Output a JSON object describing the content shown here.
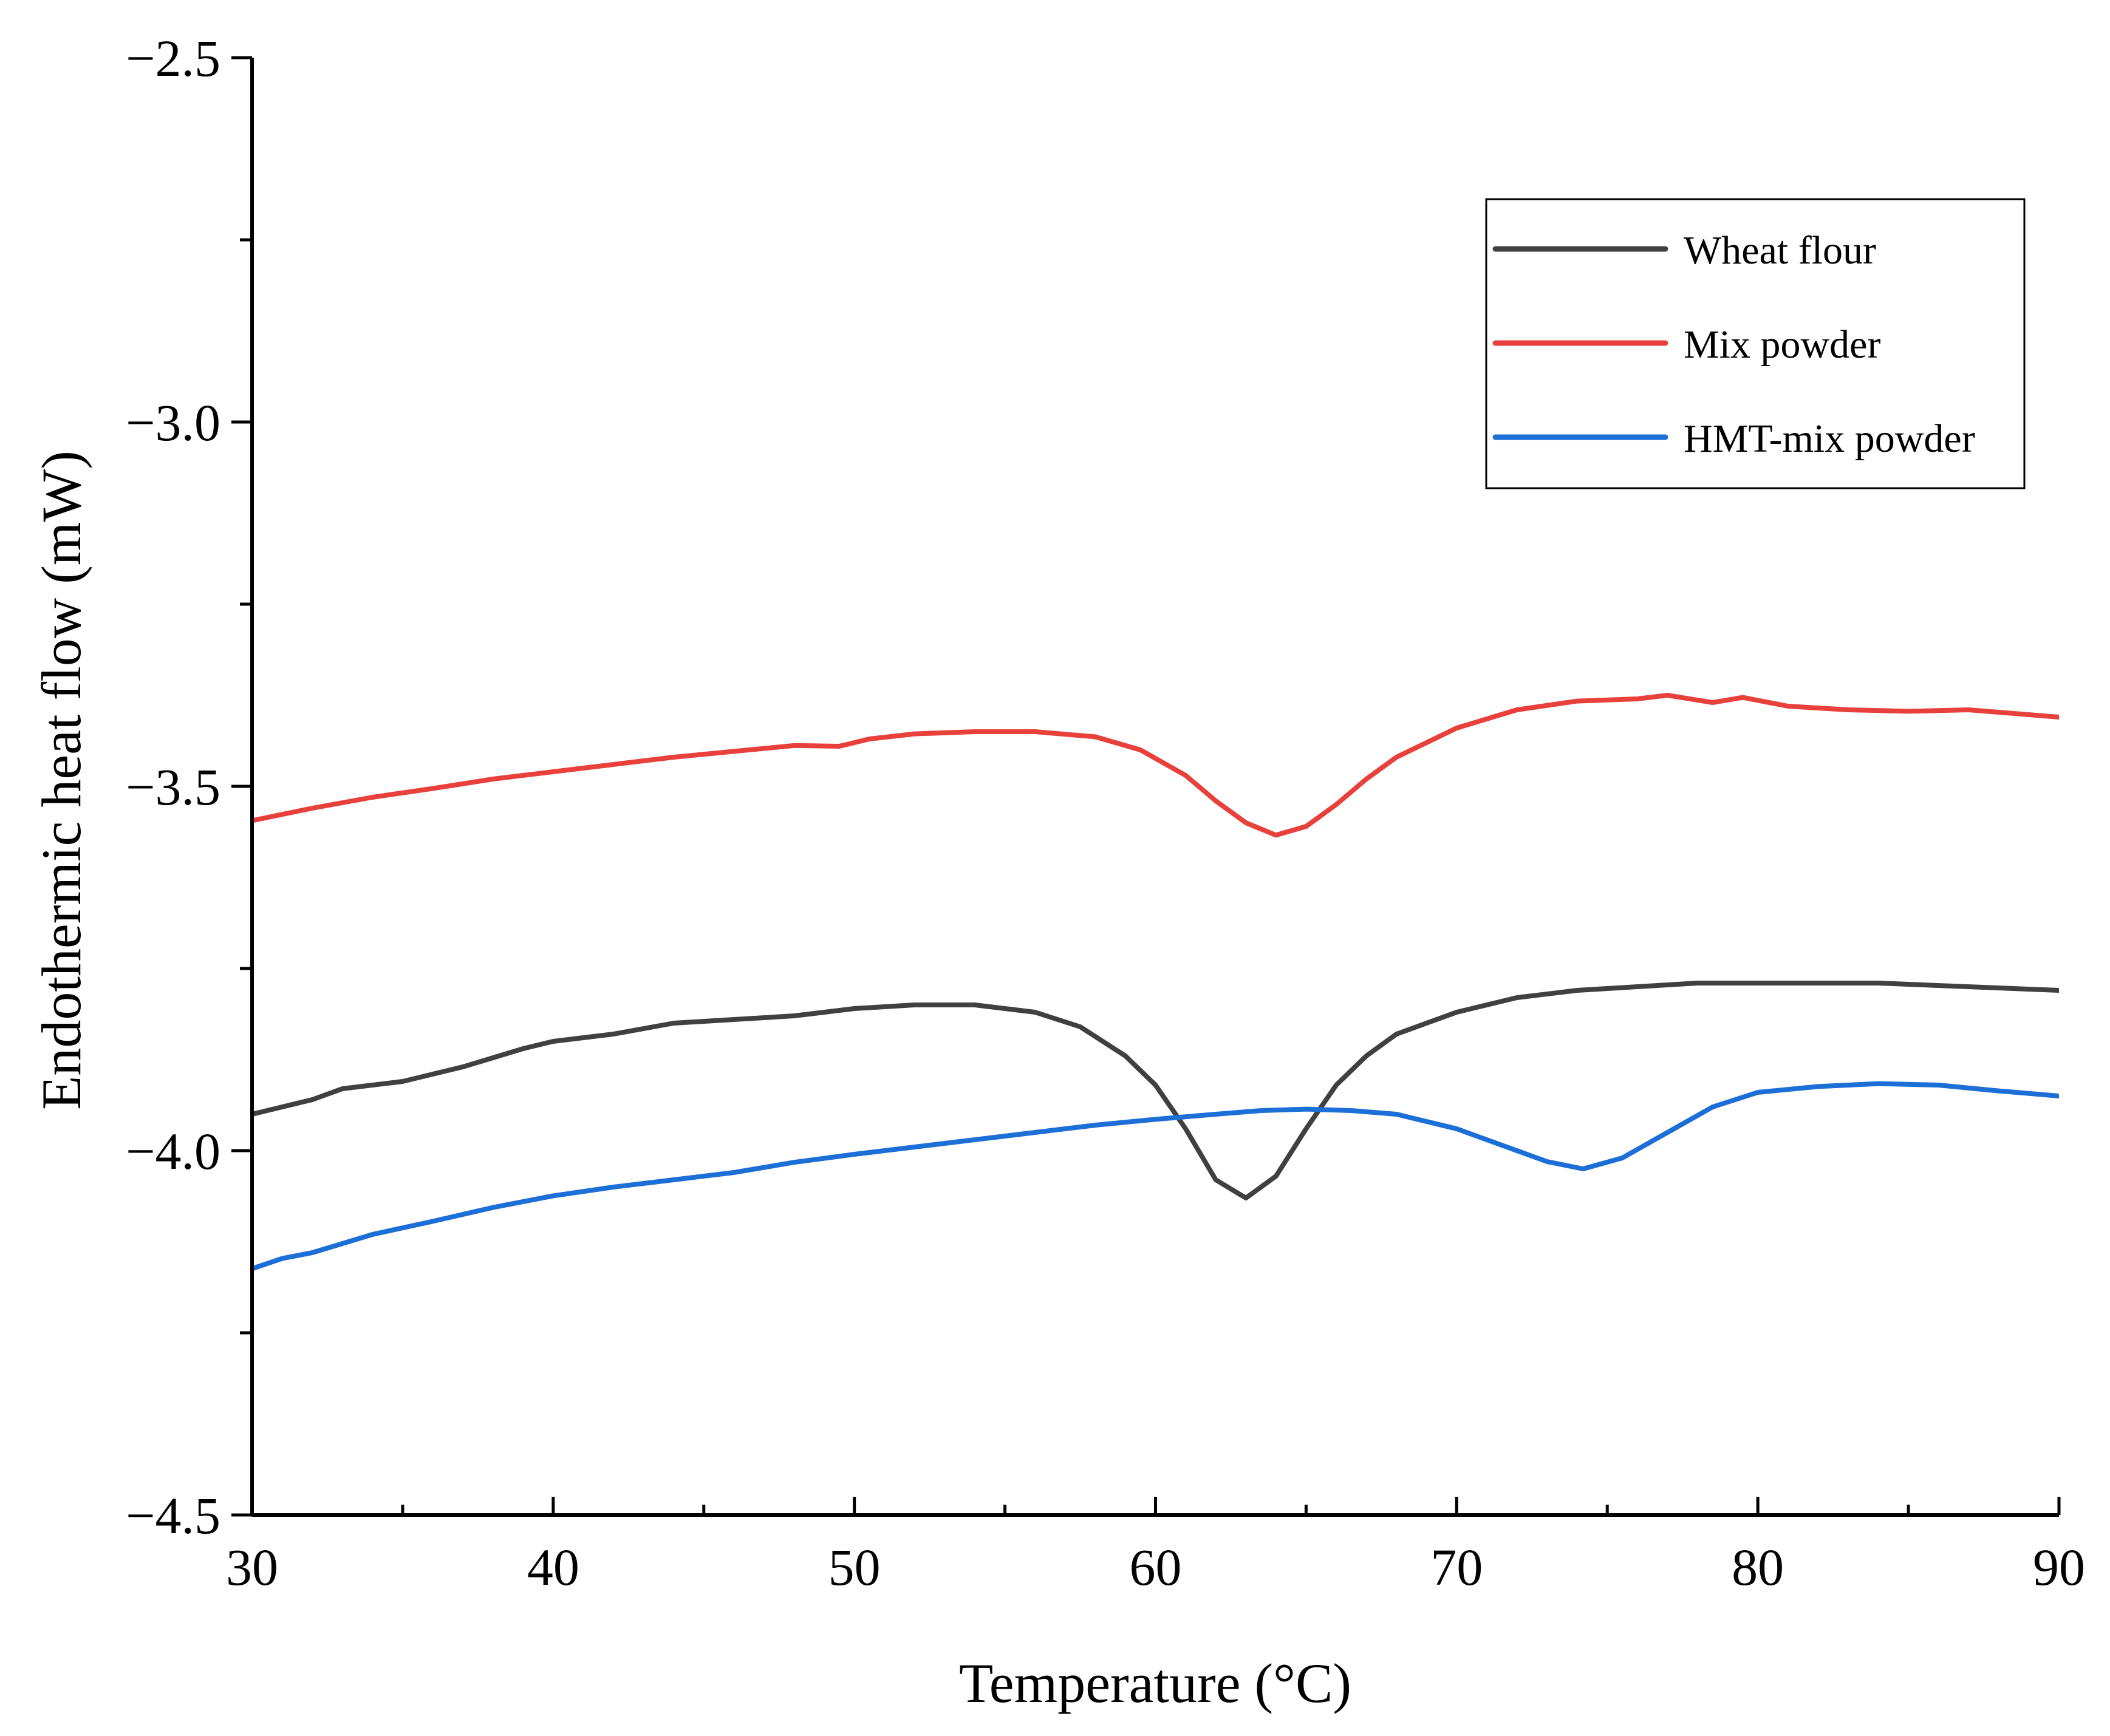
{
  "chart_data": {
    "type": "line",
    "title": "",
    "xlabel": "Temperature (°C)",
    "ylabel": "Endothermic heat flow (mW)",
    "xlim": [
      30,
      90
    ],
    "ylim": [
      -4.5,
      -2.5
    ],
    "xticks": [
      30,
      40,
      50,
      60,
      70,
      80,
      90
    ],
    "xtick_labels": [
      "30",
      "40",
      "50",
      "60",
      "70",
      "80",
      "90"
    ],
    "yticks": [
      -4.5,
      -4.0,
      -3.5,
      -3.0,
      -2.5
    ],
    "ytick_labels": [
      "−4.5",
      "−4.0",
      "−3.5",
      "−3.0",
      "−2.5"
    ],
    "grid": false,
    "legend": "top-right",
    "series": [
      {
        "name": "Wheat flour",
        "color": "#404040",
        "x": [
          30,
          32,
          33,
          35,
          37,
          39,
          40,
          42,
          44,
          46,
          48,
          50,
          52,
          54,
          56,
          57.5,
          59,
          60,
          61,
          62,
          63,
          64,
          65,
          66,
          67,
          68,
          70,
          72,
          74,
          76,
          78,
          80,
          84,
          90
        ],
        "y": [
          -3.95,
          -3.93,
          -3.915,
          -3.905,
          -3.885,
          -3.86,
          -3.85,
          -3.84,
          -3.825,
          -3.82,
          -3.815,
          -3.805,
          -3.8,
          -3.8,
          -3.81,
          -3.83,
          -3.87,
          -3.91,
          -3.97,
          -4.04,
          -4.065,
          -4.035,
          -3.97,
          -3.91,
          -3.87,
          -3.84,
          -3.81,
          -3.79,
          -3.78,
          -3.775,
          -3.77,
          -3.77,
          -3.77,
          -3.78
        ]
      },
      {
        "name": "Mix powder",
        "color": "#e8413c",
        "x": [
          30,
          32,
          34,
          36,
          38,
          40,
          42,
          44,
          46,
          48,
          49.5,
          50.5,
          52,
          54,
          56,
          58,
          59.5,
          61,
          62,
          63,
          64,
          65,
          66,
          67,
          68,
          70,
          72,
          74,
          76,
          77,
          78.5,
          79.5,
          81,
          83,
          85,
          87,
          90
        ],
        "y": [
          -3.547,
          -3.53,
          -3.515,
          -3.503,
          -3.49,
          -3.48,
          -3.47,
          -3.46,
          -3.452,
          -3.444,
          -3.445,
          -3.435,
          -3.428,
          -3.425,
          -3.425,
          -3.432,
          -3.45,
          -3.485,
          -3.52,
          -3.55,
          -3.567,
          -3.555,
          -3.525,
          -3.49,
          -3.46,
          -3.42,
          -3.395,
          -3.383,
          -3.38,
          -3.375,
          -3.385,
          -3.378,
          -3.39,
          -3.395,
          -3.397,
          -3.395,
          -3.405
        ]
      },
      {
        "name": "HMT-mix powder",
        "color": "#1c6fd6",
        "x": [
          30,
          31,
          32,
          34,
          36,
          38,
          40,
          42,
          44,
          46,
          48,
          50,
          52,
          54,
          56,
          58,
          60,
          62,
          63.5,
          65,
          66.5,
          68,
          70,
          72,
          73,
          74.2,
          75.5,
          77,
          78.5,
          80,
          82,
          84,
          86,
          88,
          90
        ],
        "y": [
          -4.162,
          -4.148,
          -4.14,
          -4.115,
          -4.097,
          -4.078,
          -4.062,
          -4.05,
          -4.04,
          -4.03,
          -4.016,
          -4.005,
          -3.995,
          -3.985,
          -3.975,
          -3.965,
          -3.957,
          -3.95,
          -3.945,
          -3.943,
          -3.945,
          -3.95,
          -3.97,
          -4.0,
          -4.015,
          -4.025,
          -4.01,
          -3.975,
          -3.94,
          -3.92,
          -3.912,
          -3.908,
          -3.91,
          -3.918,
          -3.925
        ]
      }
    ]
  }
}
